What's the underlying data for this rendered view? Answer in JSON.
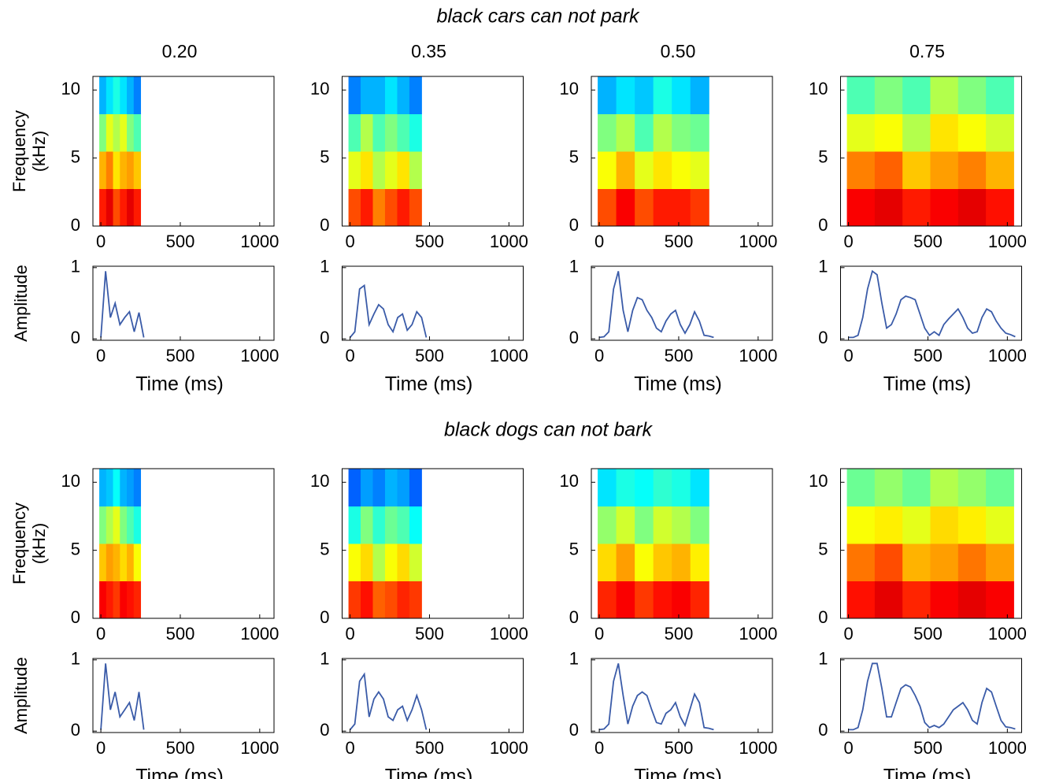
{
  "figure": {
    "row_titles": [
      "black cars can not park",
      "black dogs can not bark"
    ],
    "column_titles": [
      "0.20",
      "0.35",
      "0.50",
      "0.75"
    ]
  },
  "chart_data": [
    {
      "type": "heatmap",
      "ylabel": [
        "Frequency",
        "(kHz)"
      ],
      "x_extent": [
        -10,
        250
      ],
      "xlim": [
        -50,
        1090
      ],
      "ylim": [
        0,
        11
      ],
      "xticks": [
        0,
        500,
        1000
      ],
      "yticks": [
        0,
        5,
        10
      ],
      "values": [
        [
          0.85,
          0.9,
          0.8,
          0.85,
          0.9,
          0.85
        ],
        [
          0.7,
          0.75,
          0.65,
          0.7,
          0.72,
          0.68
        ],
        [
          0.5,
          0.6,
          0.55,
          0.6,
          0.5,
          0.45
        ],
        [
          0.3,
          0.35,
          0.4,
          0.35,
          0.3,
          0.25
        ]
      ]
    },
    {
      "type": "heatmap",
      "x_extent": [
        -10,
        450
      ],
      "xlim": [
        -50,
        1090
      ],
      "ylim": [
        0,
        11
      ],
      "xticks": [
        0,
        500,
        1000
      ],
      "yticks": [
        0,
        5,
        10
      ],
      "values": [
        [
          0.8,
          0.85,
          0.75,
          0.8,
          0.85,
          0.8
        ],
        [
          0.6,
          0.65,
          0.55,
          0.6,
          0.65,
          0.55
        ],
        [
          0.45,
          0.55,
          0.45,
          0.5,
          0.45,
          0.4
        ],
        [
          0.25,
          0.3,
          0.3,
          0.35,
          0.3,
          0.25
        ]
      ]
    },
    {
      "type": "heatmap",
      "x_extent": [
        -10,
        690
      ],
      "xlim": [
        -50,
        1090
      ],
      "ylim": [
        0,
        11
      ],
      "xticks": [
        0,
        500,
        1000
      ],
      "yticks": [
        0,
        5,
        10
      ],
      "values": [
        [
          0.8,
          0.88,
          0.8,
          0.85,
          0.85,
          0.82
        ],
        [
          0.62,
          0.7,
          0.6,
          0.65,
          0.62,
          0.6
        ],
        [
          0.5,
          0.55,
          0.45,
          0.55,
          0.5,
          0.48
        ],
        [
          0.3,
          0.35,
          0.32,
          0.4,
          0.35,
          0.3
        ]
      ]
    },
    {
      "type": "heatmap",
      "x_extent": [
        -10,
        1040
      ],
      "xlim": [
        -50,
        1090
      ],
      "ylim": [
        0,
        11
      ],
      "xticks": [
        0,
        500,
        1000
      ],
      "yticks": [
        0,
        5,
        10
      ],
      "values": [
        [
          0.88,
          0.9,
          0.85,
          0.88,
          0.9,
          0.86
        ],
        [
          0.75,
          0.78,
          0.68,
          0.72,
          0.75,
          0.7
        ],
        [
          0.6,
          0.62,
          0.55,
          0.65,
          0.62,
          0.58
        ],
        [
          0.45,
          0.5,
          0.45,
          0.55,
          0.5,
          0.45
        ]
      ]
    },
    {
      "type": "line",
      "ylabel": "Amplitude",
      "xlabel": "Time (ms)",
      "color": "#3a5ba8",
      "xlim": [
        -50,
        1090
      ],
      "ylim": [
        -0.02,
        1.02
      ],
      "xticks": [
        0,
        500,
        1000
      ],
      "yticks": [
        0,
        1
      ],
      "x": [
        0,
        30,
        60,
        90,
        120,
        150,
        180,
        210,
        240,
        270
      ],
      "values": [
        0.02,
        0.95,
        0.3,
        0.5,
        0.2,
        0.3,
        0.38,
        0.1,
        0.37,
        0.02
      ]
    },
    {
      "type": "line",
      "xlabel": "Time (ms)",
      "color": "#3a5ba8",
      "xlim": [
        -50,
        1090
      ],
      "ylim": [
        -0.02,
        1.02
      ],
      "xticks": [
        0,
        500,
        1000
      ],
      "yticks": [
        0,
        1
      ],
      "x": [
        0,
        30,
        60,
        90,
        120,
        150,
        180,
        210,
        240,
        270,
        300,
        330,
        360,
        390,
        420,
        450,
        480
      ],
      "values": [
        0.02,
        0.1,
        0.7,
        0.75,
        0.2,
        0.35,
        0.48,
        0.42,
        0.2,
        0.1,
        0.3,
        0.35,
        0.12,
        0.2,
        0.38,
        0.3,
        0.02
      ]
    },
    {
      "type": "line",
      "xlabel": "Time (ms)",
      "color": "#3a5ba8",
      "xlim": [
        -50,
        1090
      ],
      "ylim": [
        -0.02,
        1.02
      ],
      "xticks": [
        0,
        500,
        1000
      ],
      "yticks": [
        0,
        1
      ],
      "x": [
        0,
        30,
        60,
        90,
        120,
        150,
        180,
        210,
        240,
        270,
        300,
        330,
        360,
        390,
        420,
        450,
        480,
        510,
        540,
        570,
        600,
        630,
        660,
        690,
        720
      ],
      "values": [
        0.02,
        0.03,
        0.1,
        0.7,
        0.95,
        0.4,
        0.1,
        0.4,
        0.58,
        0.55,
        0.4,
        0.3,
        0.15,
        0.1,
        0.25,
        0.35,
        0.4,
        0.2,
        0.08,
        0.2,
        0.38,
        0.25,
        0.05,
        0.04,
        0.02
      ]
    },
    {
      "type": "line",
      "xlabel": "Time (ms)",
      "color": "#3a5ba8",
      "xlim": [
        -50,
        1090
      ],
      "ylim": [
        -0.02,
        1.02
      ],
      "xticks": [
        0,
        500,
        1000
      ],
      "yticks": [
        0,
        1
      ],
      "x": [
        0,
        30,
        60,
        90,
        120,
        150,
        180,
        210,
        240,
        270,
        300,
        330,
        360,
        390,
        420,
        450,
        480,
        510,
        540,
        570,
        600,
        630,
        660,
        690,
        720,
        750,
        780,
        810,
        840,
        870,
        900,
        930,
        960,
        990,
        1020,
        1050
      ],
      "values": [
        0.02,
        0.02,
        0.05,
        0.3,
        0.7,
        0.95,
        0.9,
        0.5,
        0.15,
        0.2,
        0.35,
        0.55,
        0.6,
        0.58,
        0.55,
        0.35,
        0.15,
        0.05,
        0.1,
        0.05,
        0.2,
        0.28,
        0.35,
        0.42,
        0.3,
        0.15,
        0.08,
        0.1,
        0.3,
        0.42,
        0.38,
        0.25,
        0.15,
        0.08,
        0.06,
        0.03
      ]
    },
    {
      "type": "heatmap",
      "ylabel": [
        "Frequency",
        "(kHz)"
      ],
      "x_extent": [
        -10,
        250
      ],
      "xlim": [
        -50,
        1090
      ],
      "ylim": [
        0,
        11
      ],
      "xticks": [
        0,
        500,
        1000
      ],
      "yticks": [
        0,
        5,
        10
      ],
      "values": [
        [
          0.88,
          0.85,
          0.82,
          0.88,
          0.86,
          0.84
        ],
        [
          0.68,
          0.72,
          0.7,
          0.66,
          0.7,
          0.62
        ],
        [
          0.5,
          0.55,
          0.6,
          0.5,
          0.45,
          0.4
        ],
        [
          0.3,
          0.32,
          0.38,
          0.3,
          0.28,
          0.25
        ]
      ]
    },
    {
      "type": "heatmap",
      "x_extent": [
        -10,
        450
      ],
      "xlim": [
        -50,
        1090
      ],
      "ylim": [
        0,
        11
      ],
      "xticks": [
        0,
        500,
        1000
      ],
      "yticks": [
        0,
        5,
        10
      ],
      "values": [
        [
          0.82,
          0.86,
          0.78,
          0.8,
          0.84,
          0.82
        ],
        [
          0.62,
          0.66,
          0.55,
          0.62,
          0.66,
          0.58
        ],
        [
          0.4,
          0.5,
          0.42,
          0.48,
          0.45,
          0.38
        ],
        [
          0.22,
          0.28,
          0.25,
          0.3,
          0.28,
          0.22
        ]
      ]
    },
    {
      "type": "heatmap",
      "x_extent": [
        -10,
        690
      ],
      "xlim": [
        -50,
        1090
      ],
      "ylim": [
        0,
        11
      ],
      "xticks": [
        0,
        500,
        1000
      ],
      "yticks": [
        0,
        5,
        10
      ],
      "values": [
        [
          0.84,
          0.88,
          0.82,
          0.86,
          0.88,
          0.84
        ],
        [
          0.66,
          0.72,
          0.62,
          0.68,
          0.7,
          0.64
        ],
        [
          0.52,
          0.58,
          0.5,
          0.58,
          0.55,
          0.5
        ],
        [
          0.35,
          0.4,
          0.38,
          0.42,
          0.4,
          0.35
        ]
      ]
    },
    {
      "type": "heatmap",
      "x_extent": [
        -10,
        1040
      ],
      "xlim": [
        -50,
        1090
      ],
      "ylim": [
        0,
        11
      ],
      "xticks": [
        0,
        500,
        1000
      ],
      "yticks": [
        0,
        5,
        10
      ],
      "values": [
        [
          0.86,
          0.9,
          0.84,
          0.88,
          0.9,
          0.88
        ],
        [
          0.76,
          0.8,
          0.7,
          0.72,
          0.76,
          0.72
        ],
        [
          0.62,
          0.64,
          0.6,
          0.66,
          0.64,
          0.6
        ],
        [
          0.48,
          0.52,
          0.48,
          0.55,
          0.52,
          0.48
        ]
      ]
    },
    {
      "type": "line",
      "ylabel": "Amplitude",
      "xlabel": "Time (ms)",
      "color": "#3a5ba8",
      "xlim": [
        -50,
        1090
      ],
      "ylim": [
        -0.02,
        1.02
      ],
      "xticks": [
        0,
        500,
        1000
      ],
      "yticks": [
        0,
        1
      ],
      "x": [
        0,
        30,
        60,
        90,
        120,
        150,
        180,
        210,
        240,
        270
      ],
      "values": [
        0.02,
        0.95,
        0.3,
        0.55,
        0.2,
        0.3,
        0.4,
        0.15,
        0.55,
        0.02
      ]
    },
    {
      "type": "line",
      "xlabel": "Time (ms)",
      "color": "#3a5ba8",
      "xlim": [
        -50,
        1090
      ],
      "ylim": [
        -0.02,
        1.02
      ],
      "xticks": [
        0,
        500,
        1000
      ],
      "yticks": [
        0,
        1
      ],
      "x": [
        0,
        30,
        60,
        90,
        120,
        150,
        180,
        210,
        240,
        270,
        300,
        330,
        360,
        390,
        420,
        450,
        480
      ],
      "values": [
        0.02,
        0.1,
        0.7,
        0.8,
        0.2,
        0.45,
        0.55,
        0.45,
        0.2,
        0.15,
        0.3,
        0.35,
        0.15,
        0.3,
        0.5,
        0.3,
        0.02
      ]
    },
    {
      "type": "line",
      "xlabel": "Time (ms)",
      "color": "#3a5ba8",
      "xlim": [
        -50,
        1090
      ],
      "ylim": [
        -0.02,
        1.02
      ],
      "xticks": [
        0,
        500,
        1000
      ],
      "yticks": [
        0,
        1
      ],
      "x": [
        0,
        30,
        60,
        90,
        120,
        150,
        180,
        210,
        240,
        270,
        300,
        330,
        360,
        390,
        420,
        450,
        480,
        510,
        540,
        570,
        600,
        630,
        660,
        690,
        720
      ],
      "values": [
        0.02,
        0.03,
        0.1,
        0.7,
        0.95,
        0.5,
        0.1,
        0.35,
        0.5,
        0.55,
        0.5,
        0.3,
        0.12,
        0.1,
        0.25,
        0.3,
        0.4,
        0.2,
        0.08,
        0.3,
        0.52,
        0.4,
        0.05,
        0.04,
        0.02
      ]
    },
    {
      "type": "line",
      "xlabel": "Time (ms)",
      "color": "#3a5ba8",
      "xlim": [
        -50,
        1090
      ],
      "ylim": [
        -0.02,
        1.02
      ],
      "xticks": [
        0,
        500,
        1000
      ],
      "yticks": [
        0,
        1
      ],
      "x": [
        0,
        30,
        60,
        90,
        120,
        150,
        180,
        210,
        240,
        270,
        300,
        330,
        360,
        390,
        420,
        450,
        480,
        510,
        540,
        570,
        600,
        630,
        660,
        690,
        720,
        750,
        780,
        810,
        840,
        870,
        900,
        930,
        960,
        990,
        1020,
        1050
      ],
      "values": [
        0.02,
        0.02,
        0.05,
        0.3,
        0.7,
        0.95,
        0.95,
        0.6,
        0.2,
        0.2,
        0.4,
        0.6,
        0.65,
        0.62,
        0.5,
        0.35,
        0.12,
        0.05,
        0.08,
        0.05,
        0.1,
        0.2,
        0.3,
        0.35,
        0.4,
        0.3,
        0.15,
        0.1,
        0.4,
        0.6,
        0.55,
        0.35,
        0.15,
        0.06,
        0.05,
        0.03
      ]
    }
  ]
}
